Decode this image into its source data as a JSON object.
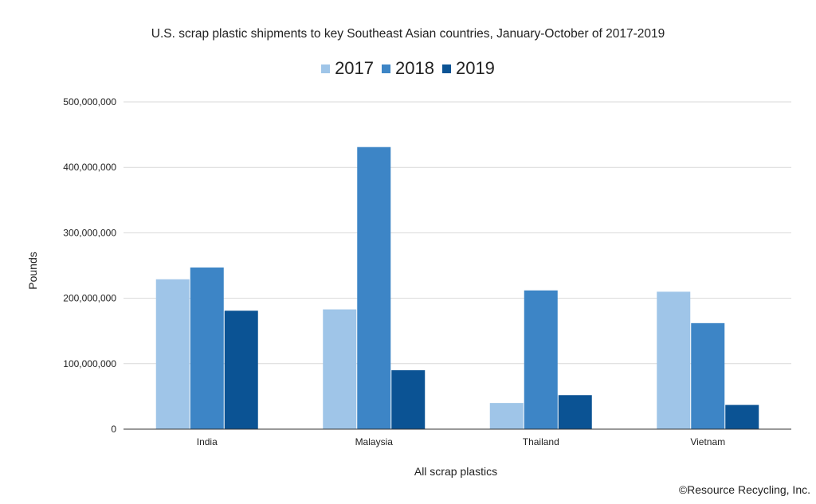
{
  "chart_data": {
    "type": "bar",
    "title": "U.S. scrap plastic shipments to key Southeast Asian countries, January-October of 2017-2019",
    "xlabel": "All scrap plastics",
    "ylabel": "Pounds",
    "categories": [
      "India",
      "Malaysia",
      "Thailand",
      "Vietnam"
    ],
    "series": [
      {
        "name": "2017",
        "color": "#9fc5e8",
        "values": [
          229000000,
          183000000,
          40000000,
          210000000
        ]
      },
      {
        "name": "2018",
        "color": "#3d85c6",
        "values": [
          247000000,
          431000000,
          212000000,
          162000000
        ]
      },
      {
        "name": "2019",
        "color": "#0b5394",
        "values": [
          181000000,
          90000000,
          52000000,
          37000000
        ]
      }
    ],
    "ylim": [
      0,
      500000000
    ],
    "yticks": [
      "0",
      "100,000,000",
      "200,000,000",
      "300,000,000",
      "400,000,000",
      "500,000,000"
    ],
    "legend_position": "top-center",
    "grid": true
  },
  "credit": "©Resource Recycling, Inc."
}
